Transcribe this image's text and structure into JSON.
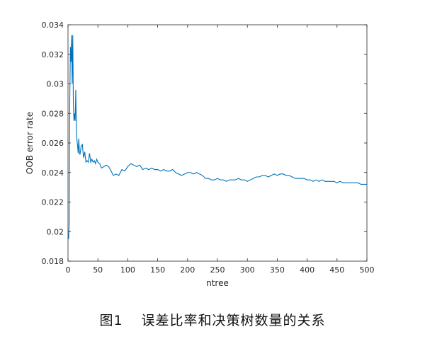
{
  "caption": {
    "figure_number": "图1",
    "text": "误差比率和决策树数量的关系"
  },
  "chart_data": {
    "type": "line",
    "xlabel": "ntree",
    "ylabel": "OOB error rate",
    "xlim": [
      0,
      500
    ],
    "ylim": [
      0.018,
      0.034
    ],
    "xticks": [
      0,
      50,
      100,
      150,
      200,
      250,
      300,
      350,
      400,
      450,
      500
    ],
    "yticks": [
      0.018,
      0.02,
      0.022,
      0.024,
      0.026,
      0.028,
      0.03,
      0.032,
      0.034
    ],
    "grid": false,
    "line_color": "#0072BD",
    "series": [
      {
        "x": [
          1,
          2,
          3,
          4,
          5,
          6,
          7,
          8,
          9,
          10,
          11,
          12,
          13,
          14,
          15,
          16,
          17,
          18,
          19,
          20,
          22,
          24,
          26,
          28,
          30,
          32,
          34,
          36,
          38,
          40,
          42,
          44,
          46,
          48,
          50,
          53,
          56,
          60,
          64,
          68,
          72,
          76,
          80,
          85,
          90,
          95,
          100,
          105,
          110,
          115,
          120,
          125,
          130,
          135,
          140,
          145,
          150,
          155,
          160,
          165,
          170,
          175,
          180,
          185,
          190,
          195,
          200,
          205,
          210,
          215,
          220,
          225,
          230,
          235,
          240,
          245,
          250,
          255,
          260,
          265,
          270,
          275,
          280,
          285,
          290,
          295,
          300,
          305,
          310,
          315,
          320,
          325,
          330,
          335,
          340,
          345,
          350,
          355,
          360,
          365,
          370,
          375,
          380,
          385,
          390,
          395,
          400,
          405,
          410,
          415,
          420,
          425,
          430,
          435,
          440,
          445,
          450,
          455,
          460,
          465,
          470,
          475,
          480,
          485,
          490,
          495,
          500
        ],
        "y": [
          0.0195,
          0.0205,
          0.029,
          0.0325,
          0.0315,
          0.0333,
          0.03,
          0.0333,
          0.0285,
          0.0275,
          0.028,
          0.0275,
          0.0296,
          0.0268,
          0.0262,
          0.0258,
          0.0253,
          0.0263,
          0.0255,
          0.0252,
          0.0258,
          0.0259,
          0.025,
          0.0254,
          0.0247,
          0.0248,
          0.0247,
          0.0253,
          0.0247,
          0.0249,
          0.0247,
          0.0248,
          0.0246,
          0.0249,
          0.0247,
          0.0246,
          0.0243,
          0.0244,
          0.0245,
          0.0244,
          0.0241,
          0.0238,
          0.0239,
          0.0238,
          0.0242,
          0.0241,
          0.0244,
          0.0246,
          0.0245,
          0.0244,
          0.0245,
          0.0242,
          0.0243,
          0.0242,
          0.0243,
          0.0242,
          0.0242,
          0.0241,
          0.0242,
          0.0241,
          0.0241,
          0.0242,
          0.024,
          0.0239,
          0.0238,
          0.0239,
          0.024,
          0.024,
          0.0239,
          0.024,
          0.0239,
          0.0238,
          0.0236,
          0.0236,
          0.0235,
          0.0235,
          0.0236,
          0.0235,
          0.0235,
          0.0234,
          0.0235,
          0.0235,
          0.0235,
          0.0236,
          0.0235,
          0.0235,
          0.0234,
          0.0235,
          0.0236,
          0.0237,
          0.0237,
          0.0238,
          0.0238,
          0.0237,
          0.0238,
          0.0239,
          0.0238,
          0.0239,
          0.0239,
          0.0238,
          0.0238,
          0.0237,
          0.0236,
          0.0236,
          0.0236,
          0.0236,
          0.0235,
          0.0235,
          0.0234,
          0.0235,
          0.0234,
          0.0235,
          0.0234,
          0.0234,
          0.0234,
          0.0234,
          0.0233,
          0.0234,
          0.0233,
          0.0233,
          0.0233,
          0.0233,
          0.0233,
          0.0233,
          0.0232,
          0.0232,
          0.0232
        ]
      }
    ]
  }
}
